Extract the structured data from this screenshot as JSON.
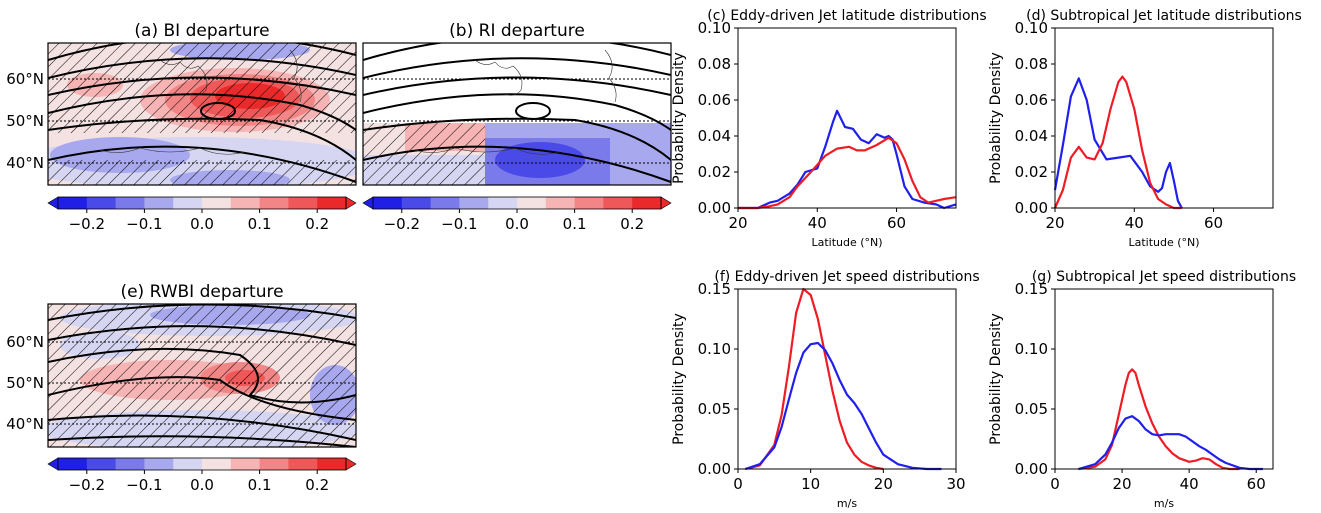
{
  "colors": {
    "red": "#ee1c25",
    "blue": "#1f1fee",
    "axes": "#000000",
    "contour": "#000000"
  },
  "maps": {
    "cmap": [
      "#1f1fe6",
      "#4a4ae8",
      "#7a7aea",
      "#a8a8ee",
      "#d6d6f2",
      "#f4e2e2",
      "#f6b4b4",
      "#f28686",
      "#ee5858",
      "#ea2a2a"
    ],
    "colorbar_ticks": [
      "−0.2",
      "−0.1",
      "0.0",
      "0.1",
      "0.2"
    ],
    "lat_ticks": [
      "60°N",
      "50°N",
      "40°N"
    ],
    "panels": [
      {
        "id": "a",
        "title": "(a) BI departure"
      },
      {
        "id": "b",
        "title": "(b) RI departure"
      },
      {
        "id": "e",
        "title": "(e) RWBI departure"
      }
    ]
  },
  "chart_data": [
    {
      "id": "c",
      "type": "line",
      "title": "(c) Eddy-driven Jet latitude distributions",
      "xlabel": "Latitude ($^\\circ$N)",
      "ylabel": "Probability Density",
      "xlim": [
        20,
        75
      ],
      "ylim": [
        0,
        0.1
      ],
      "xticks": [
        20,
        40,
        60
      ],
      "xtick_labels": [
        "20",
        "40",
        "60"
      ],
      "yticks": [
        0,
        0.02,
        0.04,
        0.06,
        0.08,
        0.1
      ],
      "ytick_labels": [
        "0.00",
        "0.02",
        "0.04",
        "0.06",
        "0.08",
        "0.10"
      ],
      "series": [
        {
          "color": "blue",
          "x": [
            20,
            25,
            28,
            30,
            33,
            35,
            37,
            40,
            42,
            44,
            45,
            47,
            49,
            51,
            53,
            55,
            57,
            58,
            59,
            60,
            62,
            64,
            67,
            70,
            72,
            75
          ],
          "y": [
            0.0,
            0.0,
            0.003,
            0.004,
            0.008,
            0.013,
            0.02,
            0.022,
            0.034,
            0.048,
            0.054,
            0.045,
            0.044,
            0.038,
            0.036,
            0.041,
            0.039,
            0.04,
            0.038,
            0.03,
            0.012,
            0.005,
            0.003,
            0.002,
            0.0,
            0.002
          ]
        },
        {
          "color": "red",
          "x": [
            20,
            25,
            28,
            30,
            33,
            35,
            38,
            40,
            42,
            45,
            48,
            50,
            52,
            55,
            58,
            60,
            62,
            64,
            66,
            68,
            70,
            72,
            75
          ],
          "y": [
            0.0,
            0.0,
            0.001,
            0.002,
            0.006,
            0.012,
            0.019,
            0.024,
            0.029,
            0.033,
            0.034,
            0.032,
            0.032,
            0.035,
            0.039,
            0.036,
            0.027,
            0.015,
            0.006,
            0.003,
            0.004,
            0.005,
            0.006
          ]
        }
      ]
    },
    {
      "id": "d",
      "type": "line",
      "title": "(d) Subtropical Jet latitude distributions",
      "xlabel": "Latitude ($^\\circ$N)",
      "ylabel": "Probability Density",
      "xlim": [
        20,
        75
      ],
      "ylim": [
        0,
        0.1
      ],
      "xticks": [
        20,
        40,
        60
      ],
      "xtick_labels": [
        "20",
        "40",
        "60"
      ],
      "yticks": [
        0,
        0.02,
        0.04,
        0.06,
        0.08,
        0.1
      ],
      "ytick_labels": [
        "0.00",
        "0.02",
        "0.04",
        "0.06",
        "0.08",
        "0.10"
      ],
      "series": [
        {
          "color": "blue",
          "x": [
            20,
            22,
            24,
            26,
            28,
            30,
            33,
            36,
            39,
            42,
            44,
            46,
            47,
            48,
            49,
            50,
            51,
            52
          ],
          "y": [
            0.01,
            0.035,
            0.062,
            0.072,
            0.06,
            0.038,
            0.027,
            0.028,
            0.029,
            0.02,
            0.012,
            0.009,
            0.011,
            0.02,
            0.025,
            0.015,
            0.004,
            0.0
          ]
        },
        {
          "color": "red",
          "x": [
            20,
            22,
            24,
            26,
            28,
            30,
            32,
            34,
            36,
            37,
            38,
            40,
            42,
            44,
            46,
            48,
            50,
            52
          ],
          "y": [
            0.0,
            0.01,
            0.028,
            0.034,
            0.028,
            0.027,
            0.036,
            0.055,
            0.07,
            0.073,
            0.07,
            0.055,
            0.032,
            0.014,
            0.005,
            0.002,
            0.0,
            0.0
          ]
        }
      ]
    },
    {
      "id": "f",
      "type": "line",
      "title": "(f) Eddy-driven Jet speed distributions",
      "xlabel": "m/s",
      "ylabel": "Probability Density",
      "xlim": [
        0,
        30
      ],
      "ylim": [
        0,
        0.15
      ],
      "xticks": [
        0,
        10,
        20,
        30
      ],
      "xtick_labels": [
        "0",
        "10",
        "20",
        "30"
      ],
      "yticks": [
        0,
        0.05,
        0.1,
        0.15
      ],
      "ytick_labels": [
        "0.00",
        "0.05",
        "0.10",
        "0.15"
      ],
      "series": [
        {
          "color": "red",
          "x": [
            1,
            3,
            5,
            6,
            7,
            8,
            9,
            10,
            11,
            12,
            13,
            14,
            15,
            16,
            17,
            18,
            19,
            20
          ],
          "y": [
            0.0,
            0.003,
            0.02,
            0.045,
            0.085,
            0.13,
            0.15,
            0.145,
            0.125,
            0.095,
            0.065,
            0.04,
            0.022,
            0.012,
            0.006,
            0.003,
            0.001,
            0.0
          ]
        },
        {
          "color": "blue",
          "x": [
            1,
            3,
            5,
            6,
            7,
            8,
            9,
            10,
            11,
            12,
            13,
            14,
            15,
            16,
            17,
            18,
            19,
            20,
            22,
            24,
            26,
            28
          ],
          "y": [
            0.0,
            0.004,
            0.018,
            0.035,
            0.058,
            0.08,
            0.097,
            0.104,
            0.105,
            0.099,
            0.088,
            0.074,
            0.062,
            0.055,
            0.046,
            0.034,
            0.022,
            0.012,
            0.004,
            0.001,
            0.0,
            0.0
          ]
        }
      ]
    },
    {
      "id": "g",
      "type": "line",
      "title": "(g) Subtropical Jet speed distributions",
      "xlabel": "m/s",
      "ylabel": "Probability Density",
      "xlim": [
        0,
        65
      ],
      "ylim": [
        0,
        0.15
      ],
      "xticks": [
        0,
        20,
        40,
        60
      ],
      "xtick_labels": [
        "0",
        "20",
        "40",
        "60"
      ],
      "yticks": [
        0,
        0.05,
        0.1,
        0.15
      ],
      "ytick_labels": [
        "0.00",
        "0.05",
        "0.10",
        "0.15"
      ],
      "series": [
        {
          "color": "red",
          "x": [
            7,
            12,
            15,
            17,
            19,
            21,
            22,
            23,
            24,
            25,
            27,
            29,
            31,
            33,
            35,
            37,
            40,
            42,
            44,
            46,
            48,
            50,
            52,
            55
          ],
          "y": [
            0.0,
            0.002,
            0.008,
            0.02,
            0.045,
            0.07,
            0.08,
            0.083,
            0.08,
            0.07,
            0.052,
            0.038,
            0.027,
            0.019,
            0.013,
            0.009,
            0.006,
            0.007,
            0.009,
            0.008,
            0.004,
            0.001,
            0.0,
            0.0
          ]
        },
        {
          "color": "blue",
          "x": [
            7,
            12,
            15,
            17,
            19,
            21,
            23,
            25,
            27,
            29,
            31,
            33,
            35,
            37,
            39,
            41,
            43,
            45,
            47,
            49,
            51,
            53,
            55,
            58,
            62
          ],
          "y": [
            0.0,
            0.004,
            0.012,
            0.022,
            0.034,
            0.042,
            0.044,
            0.04,
            0.033,
            0.029,
            0.028,
            0.029,
            0.029,
            0.029,
            0.027,
            0.023,
            0.019,
            0.016,
            0.012,
            0.008,
            0.005,
            0.003,
            0.001,
            0.0,
            0.0
          ]
        }
      ]
    }
  ]
}
